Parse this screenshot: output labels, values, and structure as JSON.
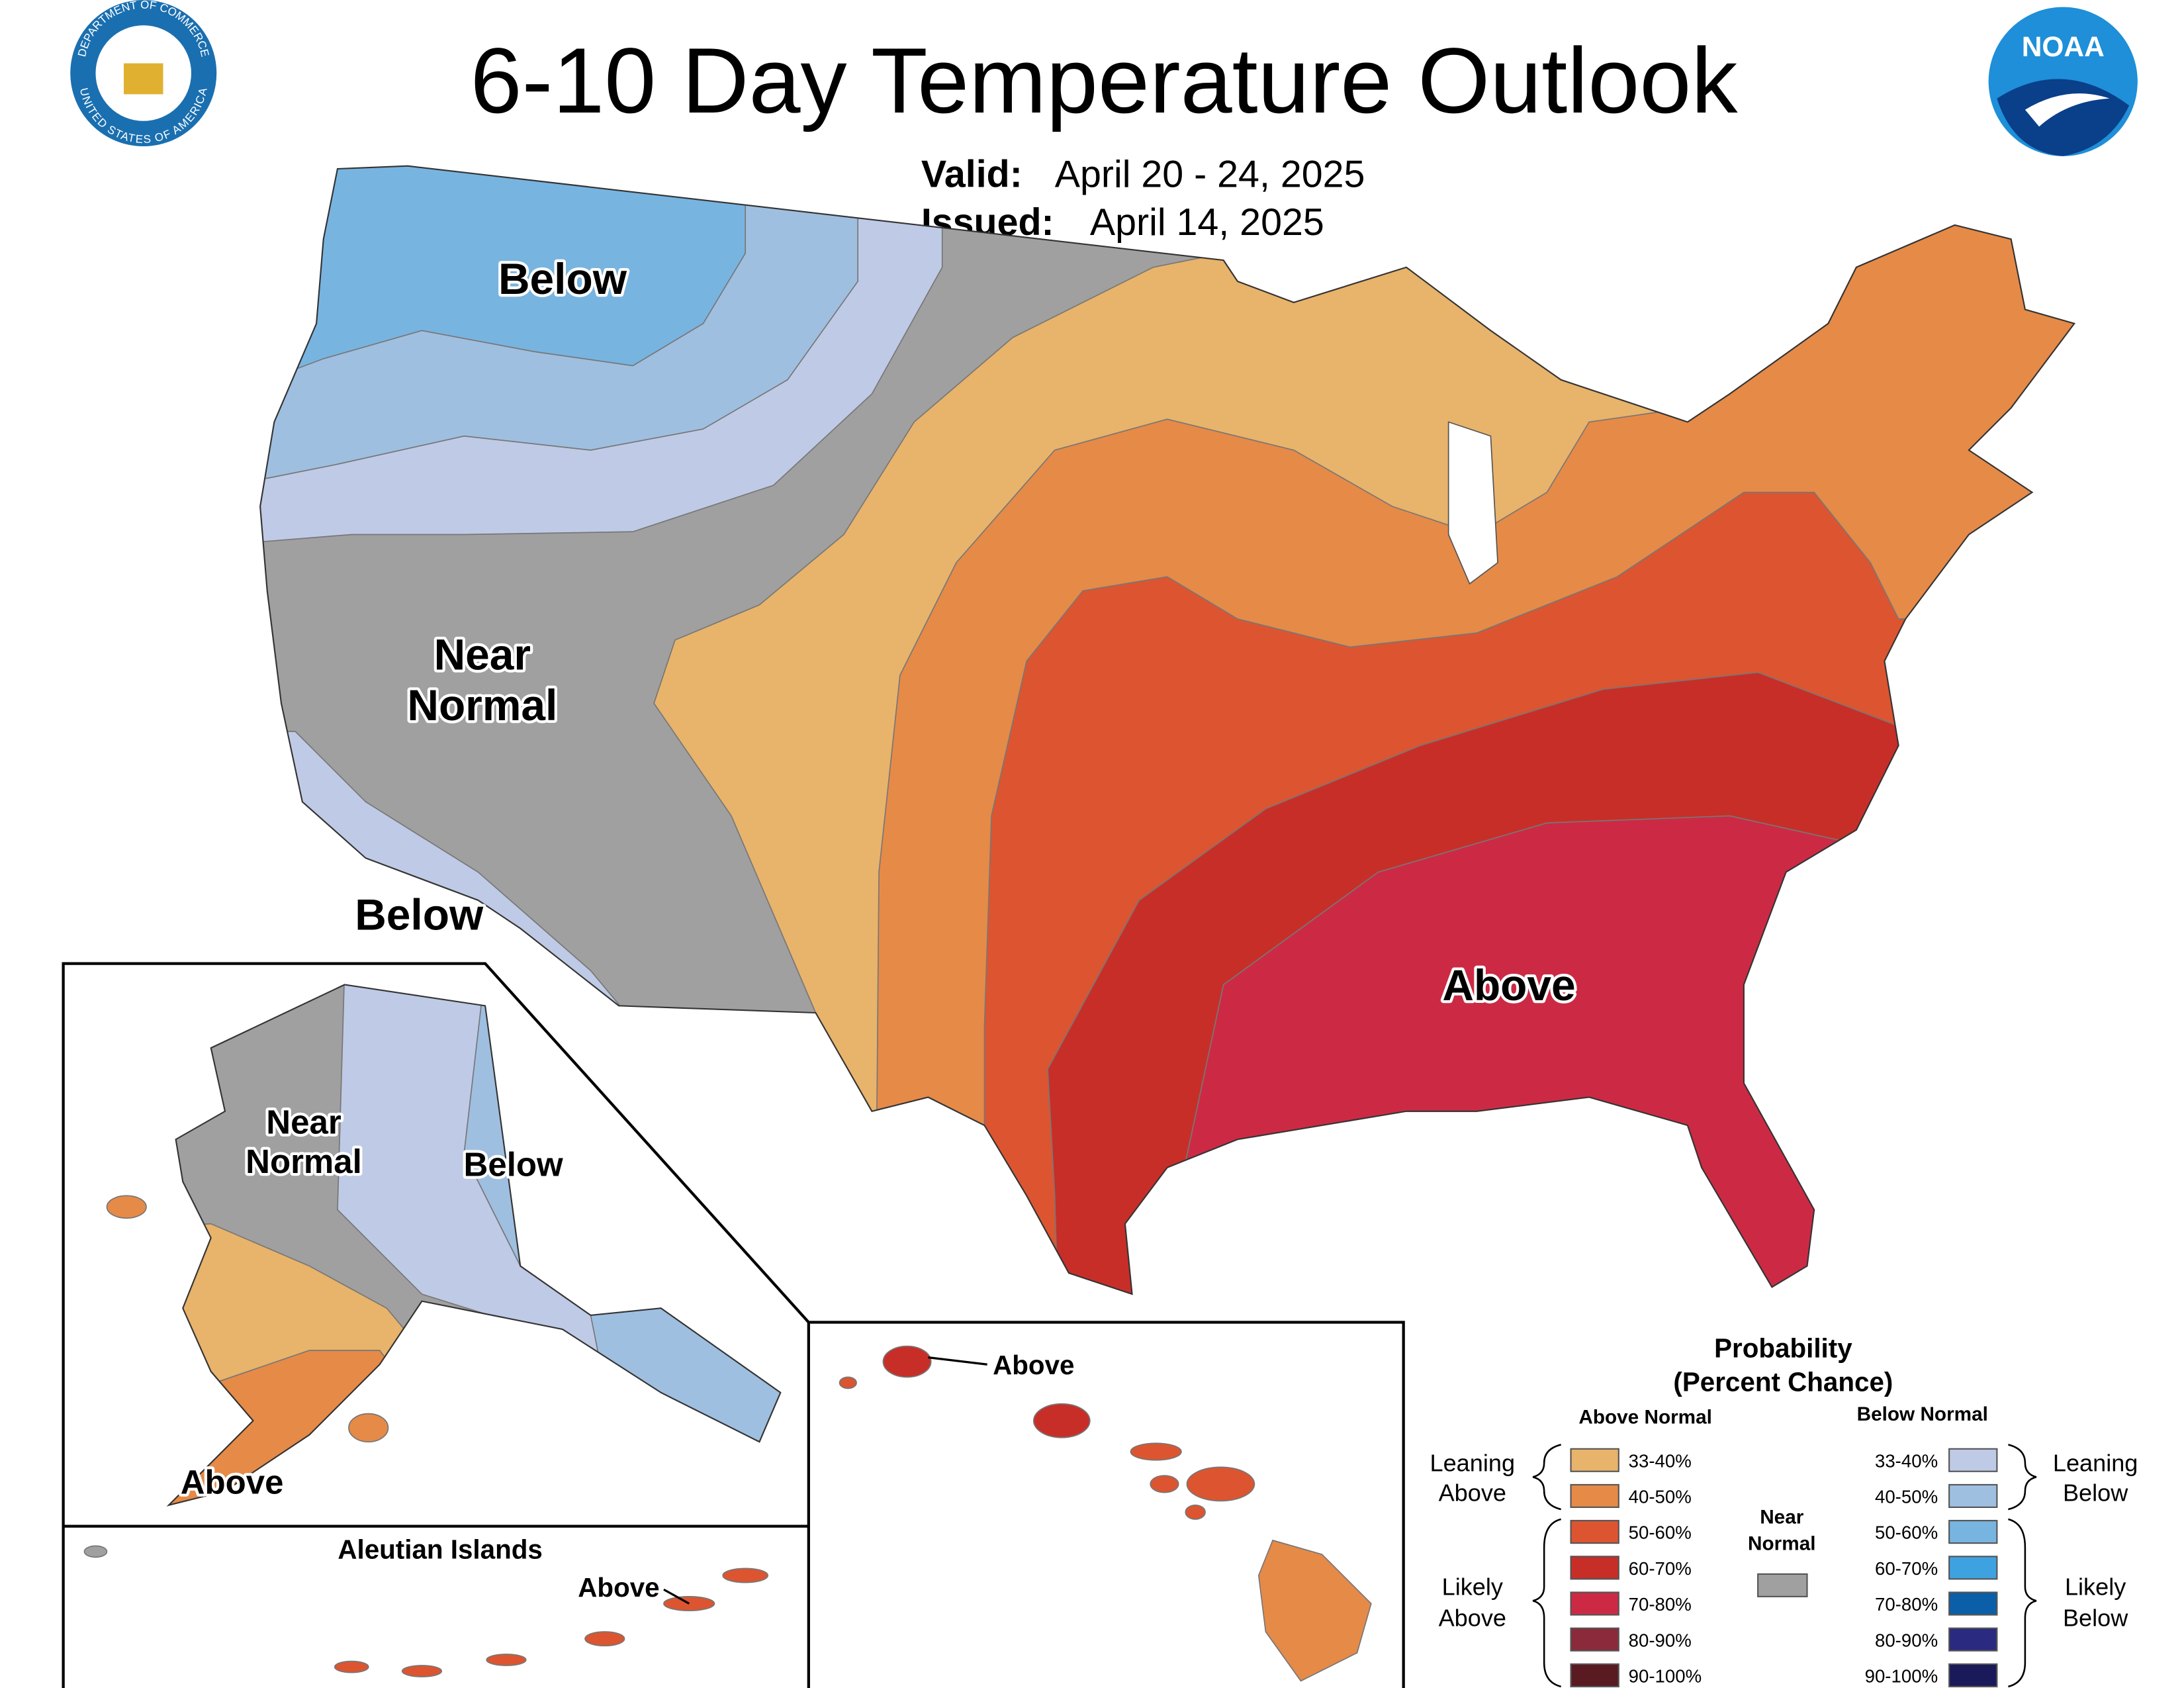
{
  "header": {
    "title": "6-10 Day Temperature Outlook",
    "valid_label": "Valid:",
    "valid": "April 20 - 24, 2025",
    "issued_label": "Issued:",
    "issued": "April 14, 2025",
    "seal_top": "DEPARTMENT OF COMMERCE",
    "seal_bottom": "UNITED STATES OF AMERICA",
    "noaa": "NOAA"
  },
  "conus": {
    "below_north": "Below",
    "near_normal": [
      "Near",
      "Normal"
    ],
    "below_south": "Below",
    "above": "Above"
  },
  "alaska": {
    "near_normal": [
      "Near",
      "Normal"
    ],
    "below": "Below",
    "above": "Above"
  },
  "aleutians": {
    "title": "Aleutian Islands",
    "above": "Above"
  },
  "hawaii": {
    "above": "Above"
  },
  "legend": {
    "title": [
      "Probability",
      "(Percent Chance)"
    ],
    "above_header": "Above Normal",
    "below_header": "Below Normal",
    "near_normal": [
      "Near",
      "Normal"
    ],
    "near_color": "#a0a0a0",
    "leaning_above": [
      "Leaning",
      "Above"
    ],
    "likely_above": [
      "Likely",
      "Above"
    ],
    "leaning_below": [
      "Leaning",
      "Below"
    ],
    "likely_below": [
      "Likely",
      "Below"
    ],
    "above": [
      {
        "label": "33-40%",
        "color": "#e8b36a"
      },
      {
        "label": "40-50%",
        "color": "#e68a48"
      },
      {
        "label": "50-60%",
        "color": "#dc5530"
      },
      {
        "label": "60-70%",
        "color": "#c82e28"
      },
      {
        "label": "70-80%",
        "color": "#cc2a44"
      },
      {
        "label": "80-90%",
        "color": "#8b2a3a"
      },
      {
        "label": "90-100%",
        "color": "#5a1a22"
      }
    ],
    "below": [
      {
        "label": "33-40%",
        "color": "#bfcae6"
      },
      {
        "label": "40-50%",
        "color": "#9fbfe0"
      },
      {
        "label": "50-60%",
        "color": "#78b4e0"
      },
      {
        "label": "60-70%",
        "color": "#3fa2e0"
      },
      {
        "label": "70-80%",
        "color": "#0a5fa8"
      },
      {
        "label": "80-90%",
        "color": "#2a2a80"
      },
      {
        "label": "90-100%",
        "color": "#1a1a5a"
      }
    ]
  }
}
